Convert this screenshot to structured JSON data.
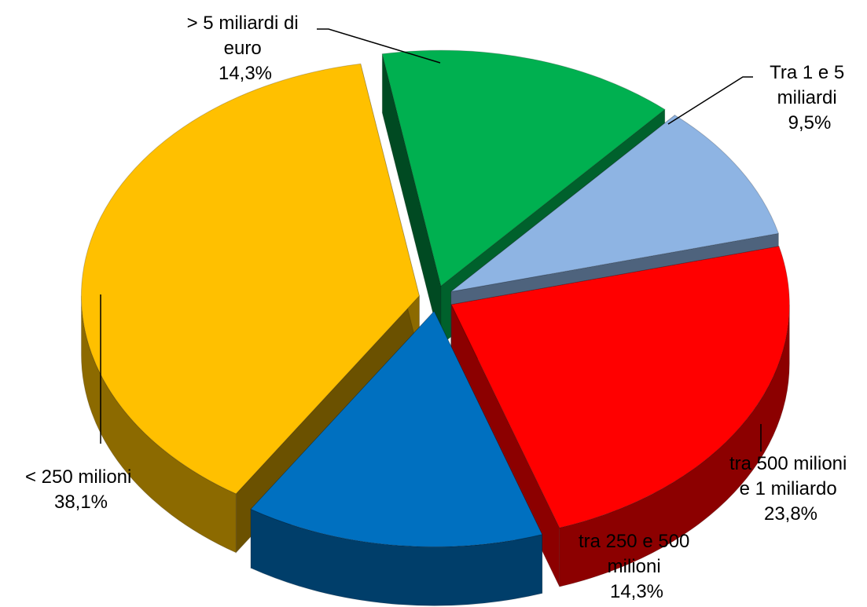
{
  "chart_data": {
    "type": "pie",
    "title": "",
    "slices": [
      {
        "label_lines": [
          "> 5 miliardi di",
          "euro"
        ],
        "value": 14.3,
        "value_label": "14,3%",
        "color": "#00B050"
      },
      {
        "label_lines": [
          "Tra 1  e 5",
          "miliardi"
        ],
        "value": 9.5,
        "value_label": "9,5%",
        "color": "#8EB4E3"
      },
      {
        "label_lines": [
          "tra 500 milioni",
          "e 1  miliardo"
        ],
        "value": 23.8,
        "value_label": "23,8%",
        "color": "#FF0000"
      },
      {
        "label_lines": [
          "tra 250 e 500",
          "milioni"
        ],
        "value": 14.3,
        "value_label": "14,3%",
        "color": "#0070C0"
      },
      {
        "label_lines": [
          "< 250 milioni"
        ],
        "value": 38.1,
        "value_label": "38,1%",
        "color": "#FFC000"
      }
    ]
  }
}
